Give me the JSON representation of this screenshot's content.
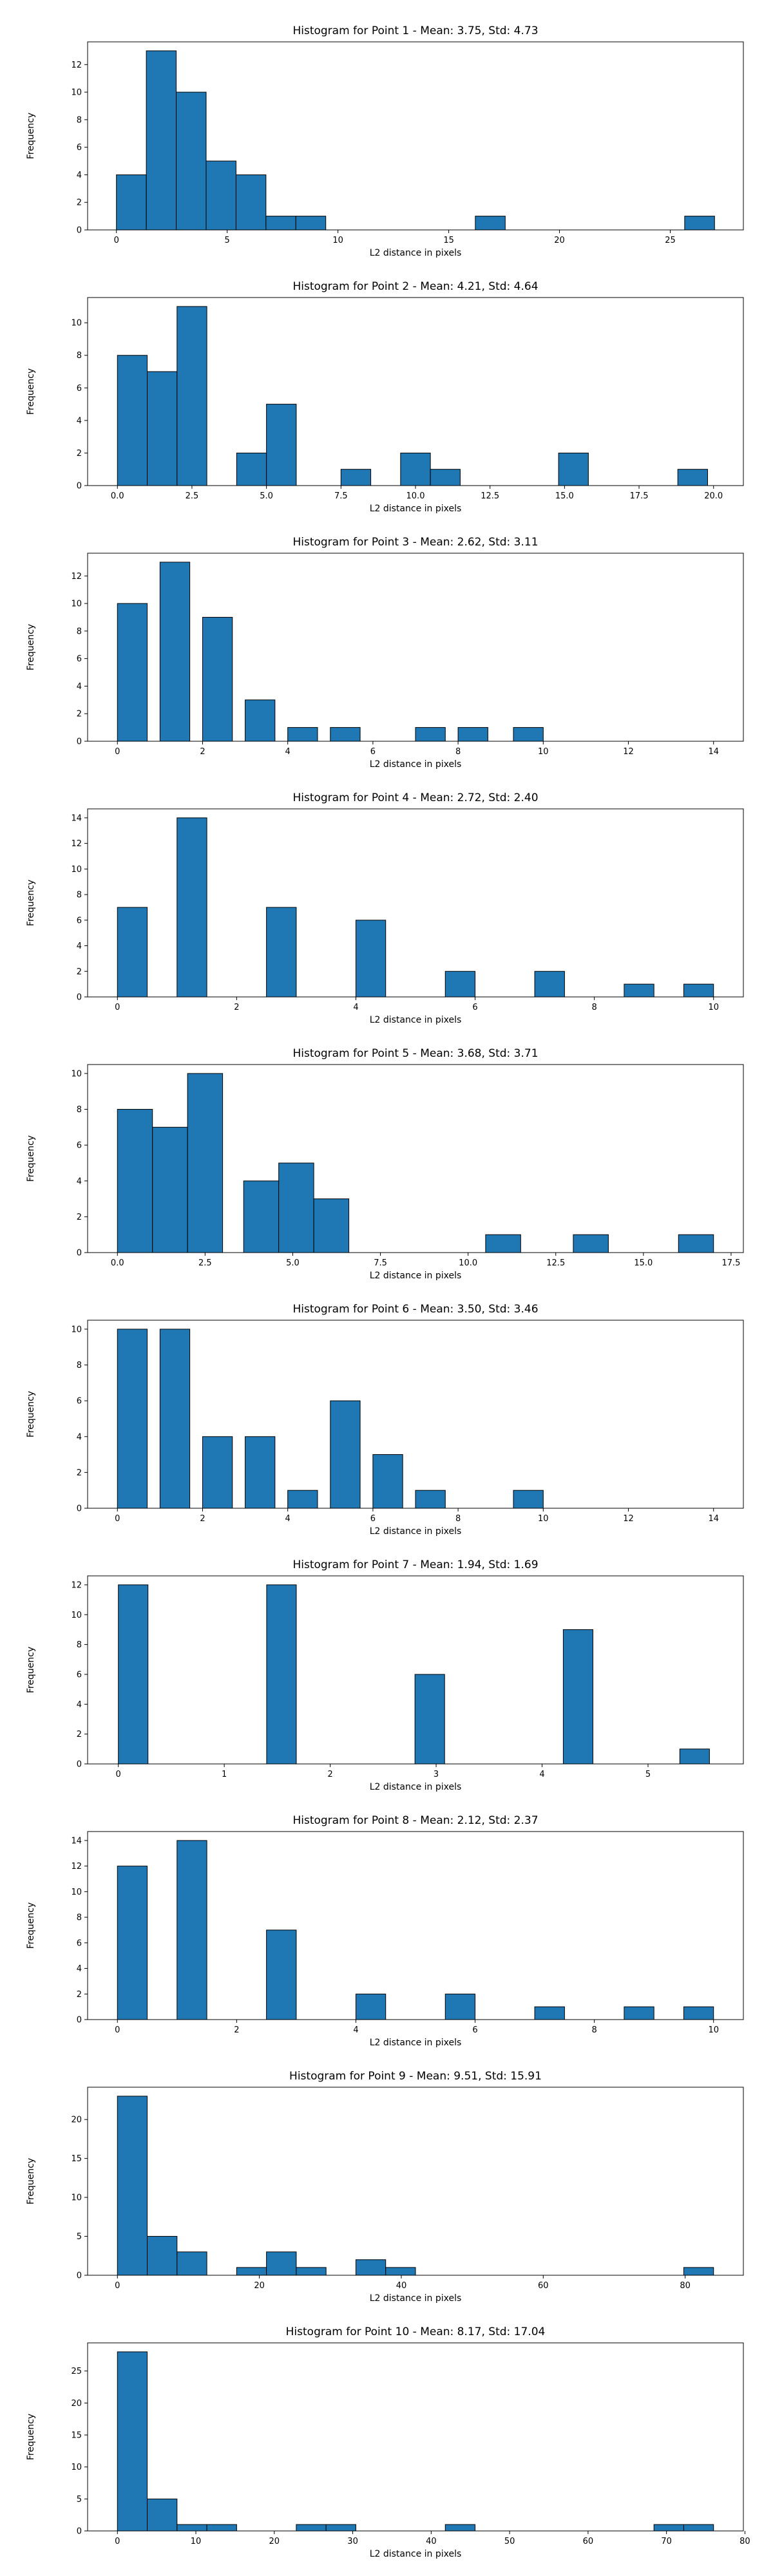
{
  "chart_data": [
    {
      "type": "bar",
      "title": "Histogram for Point 1 - Mean: 3.75, Std: 4.73",
      "xlabel": "L2 distance in pixels",
      "ylabel": "Frequency",
      "xlim": [
        -1.3,
        28.3
      ],
      "ylim": [
        0,
        13.65
      ],
      "xticks": [
        "0",
        "5",
        "10",
        "15",
        "20",
        "25"
      ],
      "yticks": [
        "0",
        "2",
        "4",
        "6",
        "8",
        "10",
        "12"
      ],
      "bins": [
        [
          0.0,
          1.35,
          4
        ],
        [
          1.35,
          2.7,
          13
        ],
        [
          2.7,
          4.05,
          10
        ],
        [
          4.05,
          5.4,
          5
        ],
        [
          5.4,
          6.75,
          4
        ],
        [
          6.75,
          8.1,
          1
        ],
        [
          8.1,
          9.45,
          1
        ],
        [
          16.2,
          17.55,
          1
        ],
        [
          25.65,
          27.0,
          1
        ]
      ]
    },
    {
      "type": "bar",
      "title": "Histogram for Point 2 - Mean: 4.21, Std: 4.64",
      "xlabel": "L2 distance in pixels",
      "ylabel": "Frequency",
      "xlim": [
        -1.0,
        21.0
      ],
      "ylim": [
        0,
        11.55
      ],
      "xticks": [
        "0.0",
        "2.5",
        "5.0",
        "7.5",
        "10.0",
        "12.5",
        "15.0",
        "17.5",
        "20.0"
      ],
      "yticks": [
        "0",
        "2",
        "4",
        "6",
        "8",
        "10"
      ],
      "bins": [
        [
          0.0,
          1.0,
          8
        ],
        [
          1.0,
          2.0,
          7
        ],
        [
          2.0,
          3.0,
          11
        ],
        [
          4.0,
          5.0,
          2
        ],
        [
          5.0,
          6.0,
          5
        ],
        [
          7.5,
          8.5,
          1
        ],
        [
          9.5,
          10.5,
          2
        ],
        [
          10.5,
          11.5,
          1
        ],
        [
          14.8,
          15.8,
          2
        ],
        [
          18.8,
          19.8,
          1
        ]
      ]
    },
    {
      "type": "bar",
      "title": "Histogram for Point 3 - Mean: 2.62, Std: 3.11",
      "xlabel": "L2 distance in pixels",
      "ylabel": "Frequency",
      "xlim": [
        -0.7,
        14.7
      ],
      "ylim": [
        0,
        13.65
      ],
      "xticks": [
        "0",
        "2",
        "4",
        "6",
        "8",
        "10",
        "12",
        "14"
      ],
      "yticks": [
        "0",
        "2",
        "4",
        "6",
        "8",
        "10",
        "12"
      ],
      "bins": [
        [
          0.0,
          0.7,
          10
        ],
        [
          1.0,
          1.7,
          13
        ],
        [
          2.0,
          2.7,
          9
        ],
        [
          3.0,
          3.7,
          3
        ],
        [
          4.0,
          4.7,
          1
        ],
        [
          5.0,
          5.7,
          1
        ],
        [
          7.0,
          7.7,
          1
        ],
        [
          8.0,
          8.7,
          1
        ],
        [
          9.3,
          10.0,
          1
        ]
      ]
    },
    {
      "type": "bar",
      "title": "Histogram for Point 4 - Mean: 2.72, Std: 2.40",
      "xlabel": "L2 distance in pixels",
      "ylabel": "Frequency",
      "xlim": [
        -0.5,
        10.5
      ],
      "ylim": [
        0,
        14.7
      ],
      "xticks": [
        "0",
        "2",
        "4",
        "6",
        "8",
        "10"
      ],
      "yticks": [
        "0",
        "2",
        "4",
        "6",
        "8",
        "10",
        "12",
        "14"
      ],
      "bins": [
        [
          0.0,
          0.5,
          7
        ],
        [
          1.0,
          1.5,
          14
        ],
        [
          2.5,
          3.0,
          7
        ],
        [
          4.0,
          4.5,
          6
        ],
        [
          5.5,
          6.0,
          2
        ],
        [
          7.0,
          7.5,
          2
        ],
        [
          8.5,
          9.0,
          1
        ],
        [
          9.5,
          10.0,
          1
        ]
      ]
    },
    {
      "type": "bar",
      "title": "Histogram for Point 5 - Mean: 3.68, Std: 3.71",
      "xlabel": "L2 distance in pixels",
      "ylabel": "Frequency",
      "xlim": [
        -0.85,
        17.85
      ],
      "ylim": [
        0,
        10.5
      ],
      "xticks": [
        "0.0",
        "2.5",
        "5.0",
        "7.5",
        "10.0",
        "12.5",
        "15.0",
        "17.5"
      ],
      "yticks": [
        "0",
        "2",
        "4",
        "6",
        "8",
        "10"
      ],
      "bins": [
        [
          0.0,
          1.0,
          8
        ],
        [
          1.0,
          2.0,
          7
        ],
        [
          2.0,
          3.0,
          10
        ],
        [
          3.6,
          4.6,
          4
        ],
        [
          4.6,
          5.6,
          5
        ],
        [
          5.6,
          6.6,
          3
        ],
        [
          10.5,
          11.5,
          1
        ],
        [
          13.0,
          14.0,
          1
        ],
        [
          16.0,
          17.0,
          1
        ]
      ]
    },
    {
      "type": "bar",
      "title": "Histogram for Point 6 - Mean: 3.50, Std: 3.46",
      "xlabel": "L2 distance in pixels",
      "ylabel": "Frequency",
      "xlim": [
        -0.7,
        14.7
      ],
      "ylim": [
        0,
        10.5
      ],
      "xticks": [
        "0",
        "2",
        "4",
        "6",
        "8",
        "10",
        "12",
        "14"
      ],
      "yticks": [
        "0",
        "2",
        "4",
        "6",
        "8",
        "10"
      ],
      "bins": [
        [
          0.0,
          0.7,
          10
        ],
        [
          1.0,
          1.7,
          10
        ],
        [
          2.0,
          2.7,
          4
        ],
        [
          3.0,
          3.7,
          4
        ],
        [
          4.0,
          4.7,
          1
        ],
        [
          5.0,
          5.7,
          6
        ],
        [
          6.0,
          6.7,
          3
        ],
        [
          7.0,
          7.7,
          1
        ],
        [
          9.3,
          10.0,
          1
        ]
      ]
    },
    {
      "type": "bar",
      "title": "Histogram for Point 7 - Mean: 1.94, Std: 1.69",
      "xlabel": "L2 distance in pixels",
      "ylabel": "Frequency",
      "xlim": [
        -0.29,
        5.9
      ],
      "ylim": [
        0,
        12.6
      ],
      "xticks": [
        "0",
        "1",
        "2",
        "3",
        "4",
        "5"
      ],
      "yticks": [
        "0",
        "2",
        "4",
        "6",
        "8",
        "10",
        "12"
      ],
      "bins": [
        [
          0.0,
          0.28,
          12
        ],
        [
          1.4,
          1.68,
          12
        ],
        [
          2.8,
          3.08,
          6
        ],
        [
          4.2,
          4.48,
          9
        ],
        [
          5.3,
          5.58,
          1
        ]
      ]
    },
    {
      "type": "bar",
      "title": "Histogram for Point 8 - Mean: 2.12, Std: 2.37",
      "xlabel": "L2 distance in pixels",
      "ylabel": "Frequency",
      "xlim": [
        -0.5,
        10.5
      ],
      "ylim": [
        0,
        14.7
      ],
      "xticks": [
        "0",
        "2",
        "4",
        "6",
        "8",
        "10"
      ],
      "yticks": [
        "0",
        "2",
        "4",
        "6",
        "8",
        "10",
        "12",
        "14"
      ],
      "bins": [
        [
          0.0,
          0.5,
          12
        ],
        [
          1.0,
          1.5,
          14
        ],
        [
          2.5,
          3.0,
          7
        ],
        [
          4.0,
          4.5,
          2
        ],
        [
          5.5,
          6.0,
          2
        ],
        [
          7.0,
          7.5,
          1
        ],
        [
          8.5,
          9.0,
          1
        ],
        [
          9.5,
          10.0,
          1
        ]
      ]
    },
    {
      "type": "bar",
      "title": "Histogram for Point 9 - Mean: 9.51, Std: 15.91",
      "xlabel": "L2 distance in pixels",
      "ylabel": "Frequency",
      "xlim": [
        -4.2,
        88.2
      ],
      "ylim": [
        0,
        24.15
      ],
      "xticks": [
        "0",
        "20",
        "40",
        "60",
        "80"
      ],
      "yticks": [
        "0",
        "5",
        "10",
        "15",
        "20"
      ],
      "bins": [
        [
          0.0,
          4.2,
          23
        ],
        [
          4.2,
          8.4,
          5
        ],
        [
          8.4,
          12.6,
          3
        ],
        [
          16.8,
          21.0,
          1
        ],
        [
          21.0,
          25.2,
          3
        ],
        [
          25.2,
          29.4,
          1
        ],
        [
          33.6,
          37.8,
          2
        ],
        [
          37.8,
          42.0,
          1
        ],
        [
          79.8,
          84.0,
          1
        ]
      ]
    },
    {
      "type": "bar",
      "title": "Histogram for Point 10 - Mean: 8.17, Std: 17.04",
      "xlabel": "L2 distance in pixels",
      "ylabel": "Frequency",
      "xlim": [
        -3.8,
        79.8
      ],
      "ylim": [
        0,
        29.4
      ],
      "xticks": [
        "0",
        "10",
        "20",
        "30",
        "40",
        "50",
        "60",
        "70",
        "80"
      ],
      "yticks": [
        "0",
        "5",
        "10",
        "15",
        "20",
        "25"
      ],
      "bins": [
        [
          0.0,
          3.8,
          28
        ],
        [
          3.8,
          7.6,
          5
        ],
        [
          7.6,
          11.4,
          1
        ],
        [
          11.4,
          15.2,
          1
        ],
        [
          22.8,
          26.6,
          1
        ],
        [
          26.6,
          30.4,
          1
        ],
        [
          41.8,
          45.6,
          1
        ],
        [
          68.4,
          72.2,
          1
        ],
        [
          72.2,
          76.0,
          1
        ]
      ]
    }
  ]
}
